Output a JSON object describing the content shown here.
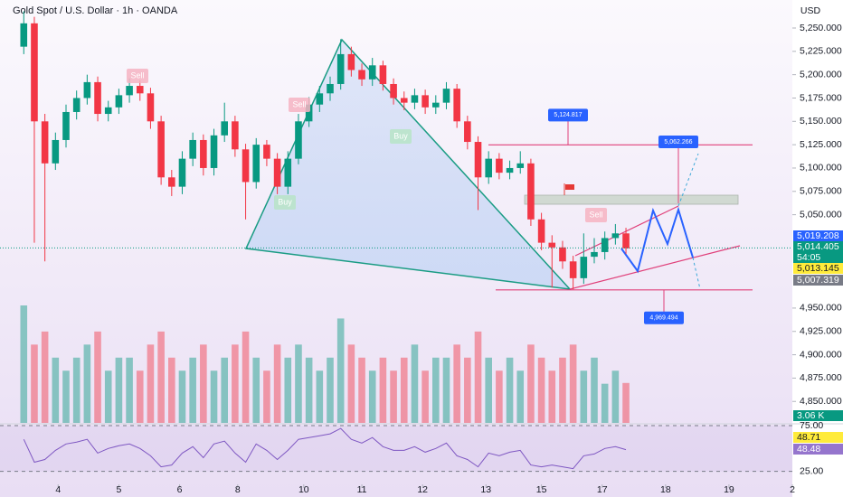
{
  "chart_data": {
    "type": "candlestick",
    "title": "Gold Spot / U.S. Dollar · 1h · OANDA",
    "currency": "USD",
    "up_color": "#089981",
    "down_color": "#f23645",
    "xlim": [
      0,
      300
    ],
    "xticks": [
      {
        "value": 22,
        "label": "4"
      },
      {
        "value": 45,
        "label": "5"
      },
      {
        "value": 68,
        "label": "6"
      },
      {
        "value": 90,
        "label": "8"
      },
      {
        "value": 115,
        "label": "10"
      },
      {
        "value": 137,
        "label": "11"
      },
      {
        "value": 160,
        "label": "12"
      },
      {
        "value": 184,
        "label": "13"
      },
      {
        "value": 205,
        "label": "15"
      },
      {
        "value": 228,
        "label": "17"
      },
      {
        "value": 252,
        "label": "18"
      },
      {
        "value": 276,
        "label": "19"
      },
      {
        "value": 300,
        "label": "2"
      }
    ],
    "ylim": [
      4827,
      5280
    ],
    "yticks": [
      {
        "value": 5250,
        "label": "5,250.000"
      },
      {
        "value": 5225,
        "label": "5,225.000"
      },
      {
        "value": 5200,
        "label": "5,200.000"
      },
      {
        "value": 5175,
        "label": "5,175.000"
      },
      {
        "value": 5150,
        "label": "5,150.000"
      },
      {
        "value": 5125,
        "label": "5,125.000"
      },
      {
        "value": 5100,
        "label": "5,100.000"
      },
      {
        "value": 5075,
        "label": "5,075.000"
      },
      {
        "value": 5050,
        "label": "5,050.000"
      },
      {
        "value": 4950,
        "label": "4,950.000"
      },
      {
        "value": 4925,
        "label": "4,925.000"
      },
      {
        "value": 4900,
        "label": "4,900.000"
      },
      {
        "value": 4875,
        "label": "4,875.000"
      },
      {
        "value": 4850,
        "label": "4,850.000"
      }
    ],
    "x": [
      9,
      13,
      17,
      21,
      25,
      29,
      33,
      37,
      41,
      45,
      49,
      53,
      57,
      61,
      65,
      69,
      73,
      77,
      81,
      85,
      89,
      93,
      97,
      101,
      105,
      109,
      113,
      117,
      121,
      125,
      129,
      133,
      137,
      141,
      145,
      149,
      153,
      157,
      161,
      165,
      169,
      173,
      177,
      181,
      185,
      189,
      193,
      197,
      201,
      205,
      209,
      213,
      217,
      221,
      225,
      229,
      233,
      237
    ],
    "open": [
      5230,
      5255,
      5150,
      5105,
      5130,
      5160,
      5175,
      5192,
      5158,
      5165,
      5178,
      5188,
      5180,
      5150,
      5090,
      5080,
      5110,
      5130,
      5100,
      5135,
      5150,
      5120,
      5085,
      5125,
      5110,
      5080,
      5110,
      5150,
      5168,
      5180,
      5190,
      5222,
      5205,
      5195,
      5210,
      5190,
      5175,
      5170,
      5178,
      5165,
      5170,
      5185,
      5150,
      5128,
      5090,
      5110,
      5095,
      5100,
      5105,
      5045,
      5020,
      5015,
      5000,
      4982,
      5005,
      5010,
      5025,
      5030
    ],
    "high": [
      5268,
      5262,
      5158,
      5138,
      5168,
      5183,
      5200,
      5198,
      5172,
      5185,
      5196,
      5194,
      5186,
      5156,
      5098,
      5118,
      5138,
      5136,
      5142,
      5170,
      5156,
      5126,
      5132,
      5130,
      5116,
      5118,
      5158,
      5176,
      5188,
      5198,
      5238,
      5230,
      5212,
      5218,
      5215,
      5196,
      5182,
      5185,
      5184,
      5178,
      5192,
      5190,
      5156,
      5134,
      5118,
      5116,
      5108,
      5118,
      5110,
      5052,
      5028,
      5022,
      5006,
      5030,
      5025,
      5032,
      5040,
      5036
    ],
    "low": [
      5222,
      5020,
      5000,
      5098,
      5122,
      5152,
      5168,
      5150,
      5150,
      5158,
      5170,
      5172,
      5142,
      5082,
      5070,
      5072,
      5102,
      5092,
      5092,
      5128,
      5112,
      5045,
      5078,
      5102,
      5072,
      5072,
      5104,
      5144,
      5160,
      5172,
      5184,
      5198,
      5188,
      5188,
      5183,
      5168,
      5162,
      5163,
      5158,
      5158,
      5163,
      5143,
      5120,
      5055,
      5083,
      5088,
      5088,
      5094,
      5038,
      5012,
      4972,
      4992,
      4970,
      4976,
      4998,
      5002,
      5018,
      5008
    ],
    "close": [
      5255,
      5150,
      5105,
      5130,
      5160,
      5175,
      5192,
      5158,
      5165,
      5178,
      5188,
      5180,
      5150,
      5090,
      5080,
      5110,
      5130,
      5100,
      5135,
      5150,
      5120,
      5085,
      5125,
      5110,
      5080,
      5110,
      5150,
      5168,
      5180,
      5190,
      5222,
      5205,
      5195,
      5210,
      5190,
      5175,
      5170,
      5178,
      5165,
      5170,
      5185,
      5150,
      5128,
      5090,
      5110,
      5095,
      5100,
      5105,
      5045,
      5020,
      5015,
      5000,
      4982,
      5005,
      5010,
      5025,
      5030,
      5014
    ],
    "volume": {
      "values": [
        9,
        6,
        7,
        5,
        4,
        5,
        6,
        7,
        4,
        5,
        5,
        4,
        6,
        7,
        5,
        4,
        5,
        6,
        4,
        5,
        6,
        7,
        5,
        4,
        6,
        5,
        6,
        5,
        4,
        5,
        8,
        6,
        5,
        4,
        5,
        4,
        5,
        6,
        4,
        5,
        5,
        6,
        5,
        7,
        5,
        4,
        5,
        4,
        6,
        5,
        4,
        5,
        6,
        4,
        5,
        3,
        4,
        3.06
      ],
      "last_label": "3.06 K"
    },
    "price_labels": [
      {
        "value": 5019.208,
        "label": "5,019.208",
        "color": "#2962ff"
      },
      {
        "value": 5014.405,
        "label": "5,014.405",
        "color": "#089981"
      },
      {
        "value": 5013.145,
        "label": "5,013.145",
        "color": "#ffeb3b"
      },
      {
        "value": 5007.319,
        "label": "5,007.319",
        "color": "#787b86"
      }
    ],
    "countdown": "54:05",
    "annotations": [
      {
        "value": 5124.817,
        "label": "5,124.817"
      },
      {
        "value": 5062.266,
        "label": "5,062.266"
      },
      {
        "value": 4969.494,
        "label": "4,969.494"
      }
    ],
    "signals": [
      "Sell",
      "Sell",
      "Buy",
      "Buy",
      "Sell"
    ],
    "rsi": {
      "ylim": [
        -3,
        76
      ],
      "yticks": [
        {
          "value": 75,
          "label": "75.00"
        },
        {
          "value": 25,
          "label": "25.00"
        }
      ],
      "color": "#7e57c2",
      "values": [
        60,
        35,
        38,
        48,
        55,
        57,
        60,
        45,
        50,
        53,
        55,
        50,
        42,
        30,
        32,
        45,
        52,
        40,
        55,
        58,
        45,
        35,
        55,
        48,
        38,
        48,
        60,
        62,
        64,
        66,
        72,
        60,
        56,
        62,
        52,
        48,
        48,
        52,
        46,
        50,
        56,
        42,
        38,
        30,
        45,
        42,
        46,
        48,
        32,
        30,
        32,
        30,
        28,
        42,
        44,
        50,
        52,
        48.71
      ],
      "last": {
        "value": 48.71,
        "label": "48.71"
      },
      "ma_last": {
        "value": 48.48,
        "label": "48.48"
      }
    }
  }
}
